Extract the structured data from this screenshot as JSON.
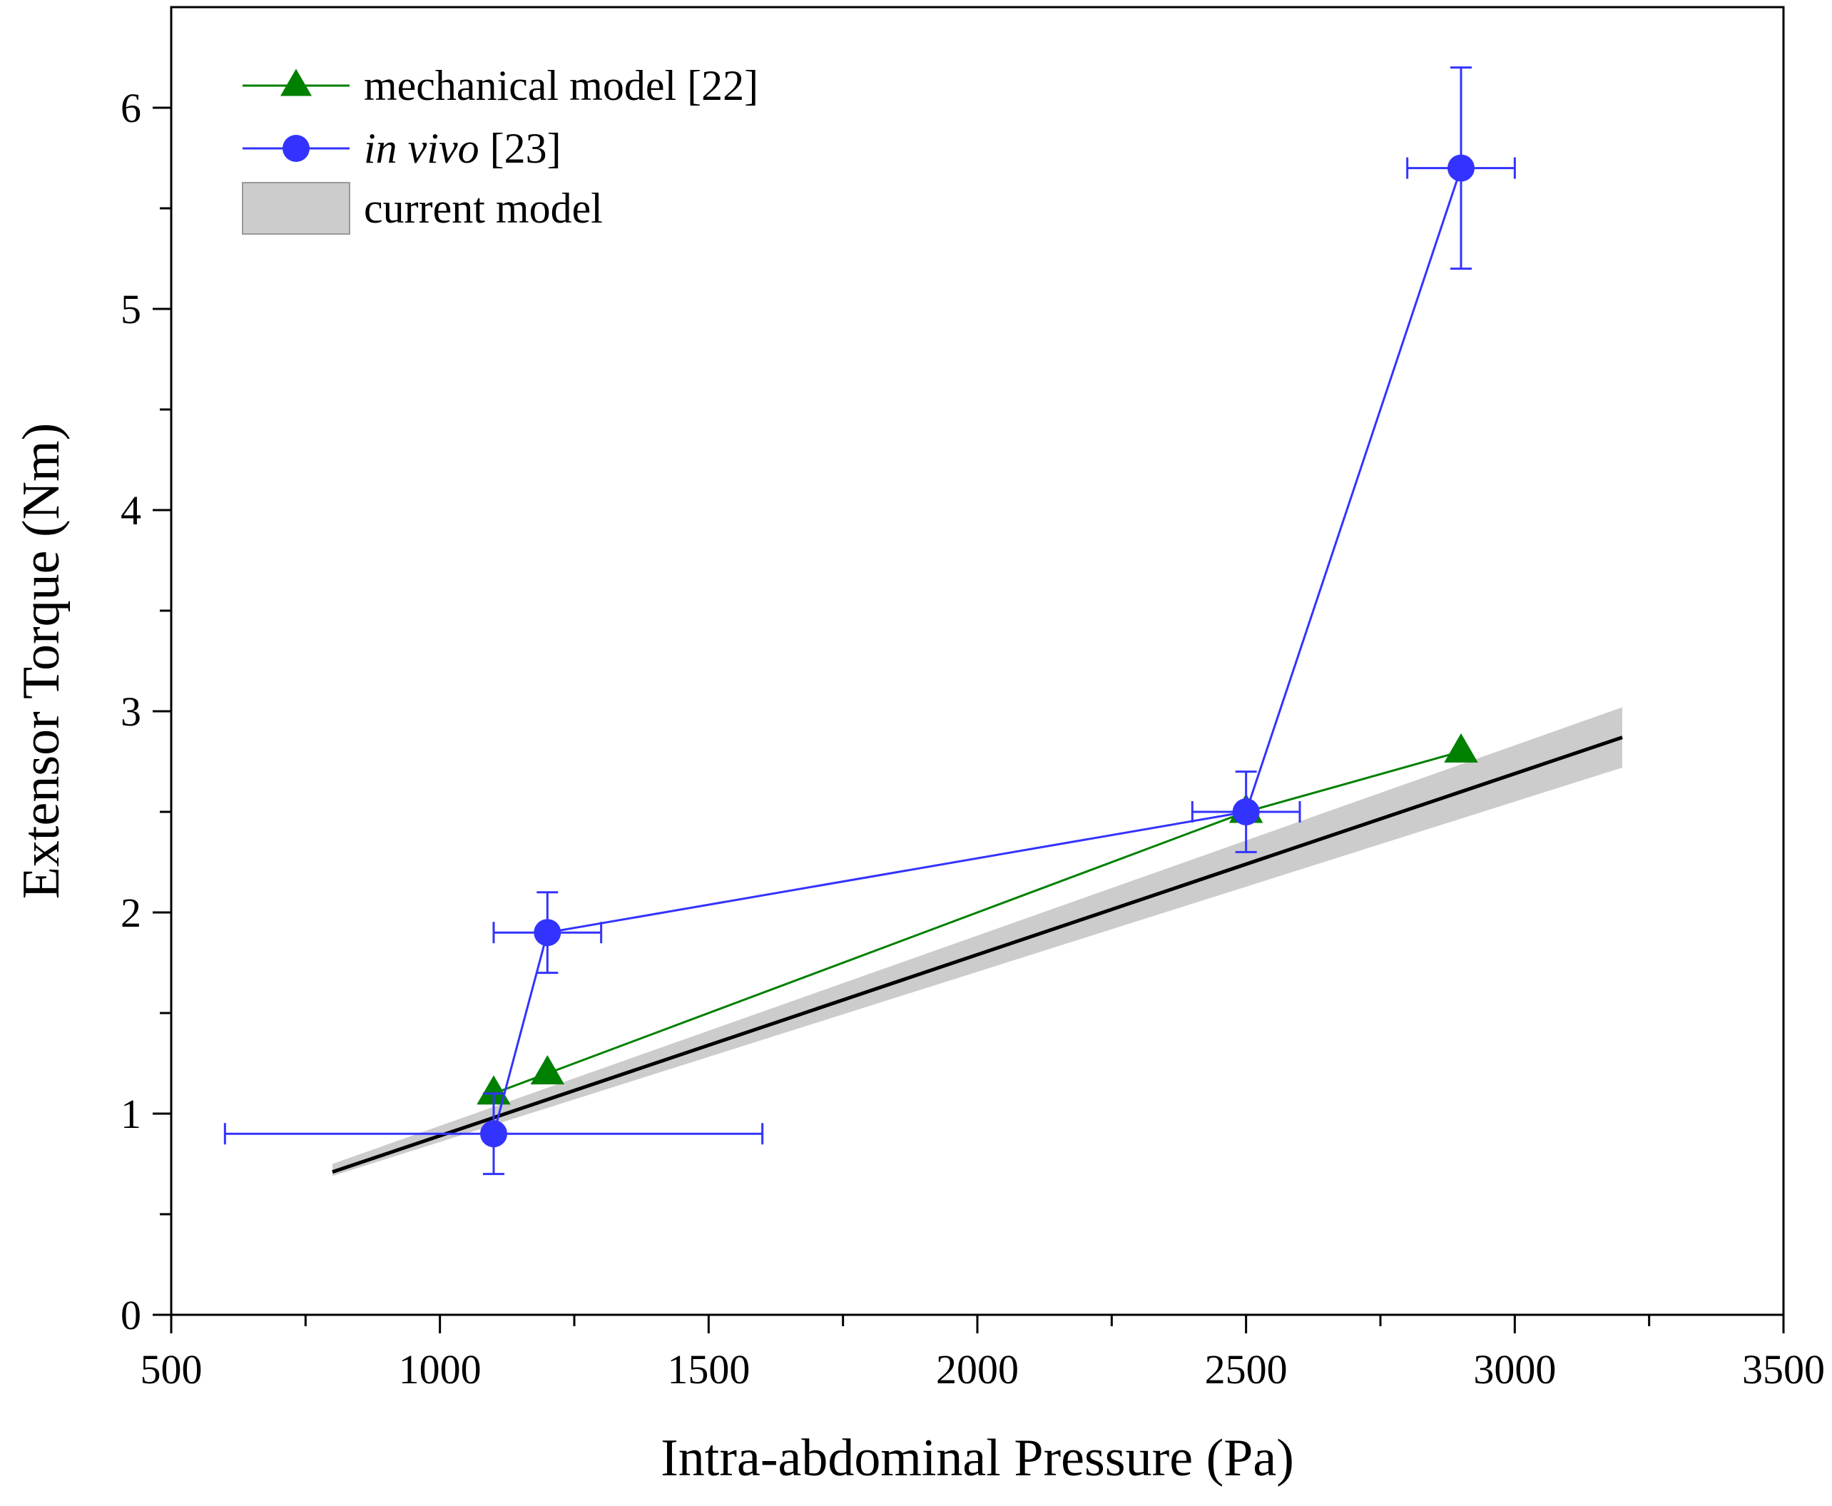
{
  "chart_data": {
    "type": "line",
    "xlabel": "Intra-abdominal Pressure (Pa)",
    "ylabel": "Extensor Torque (Nm)",
    "xlim": [
      500,
      3500
    ],
    "ylim": [
      0,
      6.5
    ],
    "x_ticks": [
      500,
      1000,
      1500,
      2000,
      2500,
      3000,
      3500
    ],
    "x_minor_ticks": [
      750,
      1250,
      1750,
      2250,
      2750,
      3250
    ],
    "y_ticks": [
      0,
      1,
      2,
      3,
      4,
      5,
      6
    ],
    "y_minor_ticks": [
      0.5,
      1.5,
      2.5,
      3.5,
      4.5,
      5.5
    ],
    "grid": false,
    "legend_position": "top-left",
    "series": [
      {
        "name": "mechanical model [22]",
        "color": "#008000",
        "marker": "triangle",
        "x": [
          1100,
          1200,
          2500,
          2900
        ],
        "y": [
          1.1,
          1.2,
          2.5,
          2.8
        ]
      },
      {
        "name": "in vivo [23]",
        "name_italic": "in vivo",
        "name_rest": " [23]",
        "color": "#3333ff",
        "marker": "circle",
        "x": [
          1100,
          1200,
          2500,
          2900
        ],
        "y": [
          0.9,
          1.9,
          2.5,
          5.7
        ],
        "x_err_low": [
          600,
          1100,
          2400,
          2800
        ],
        "x_err_high": [
          1600,
          1300,
          2600,
          3000
        ],
        "y_err_low": [
          0.7,
          1.7,
          2.3,
          5.2
        ],
        "y_err_high": [
          1.1,
          2.1,
          2.7,
          6.2
        ]
      }
    ],
    "model": {
      "name": "current model",
      "line_color": "#000000",
      "band_color": "#cccccc",
      "x": [
        800,
        3200
      ],
      "y": [
        0.71,
        2.87
      ],
      "band_low": [
        0.69,
        2.72
      ],
      "band_high": [
        0.75,
        3.02
      ]
    }
  }
}
